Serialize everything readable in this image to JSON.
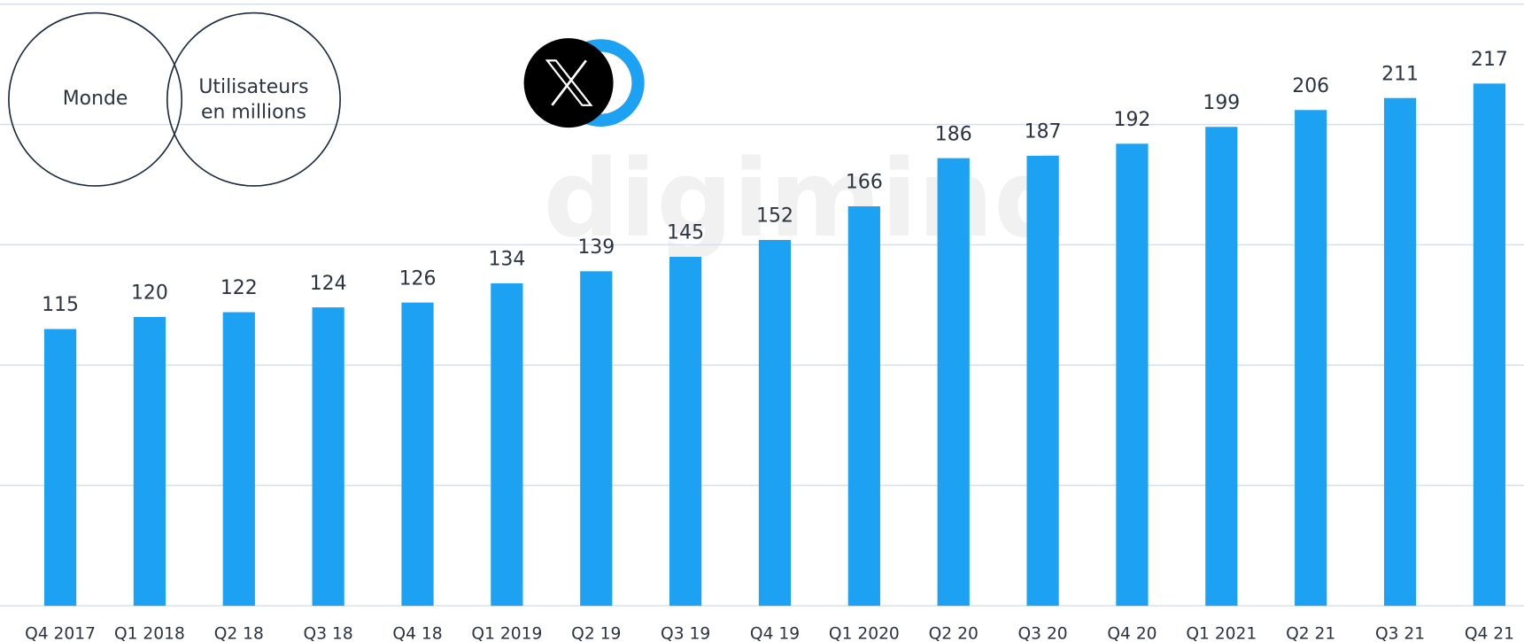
{
  "chart_data": {
    "type": "bar",
    "annotations": {
      "region": "Monde",
      "unit": [
        "Utilisateurs",
        "en millions"
      ],
      "watermark": "digimind"
    },
    "categories": [
      "Q4 2017",
      "Q1 2018",
      "Q2 18",
      "Q3 18",
      "Q4 18",
      "Q1 2019",
      "Q2 19",
      "Q3 19",
      "Q4 19",
      "Q1 2020",
      "Q2 20",
      "Q3 20",
      "Q4 20",
      "Q1 2021",
      "Q2 21",
      "Q3 21",
      "Q4 21"
    ],
    "values": [
      115,
      120,
      122,
      124,
      126,
      134,
      139,
      145,
      152,
      166,
      186,
      187,
      192,
      199,
      206,
      211,
      217
    ],
    "color": "#1da1f2",
    "ylim": [
      0,
      250
    ],
    "yticks": [
      0,
      50,
      100,
      150,
      200,
      250
    ],
    "grid": true
  }
}
